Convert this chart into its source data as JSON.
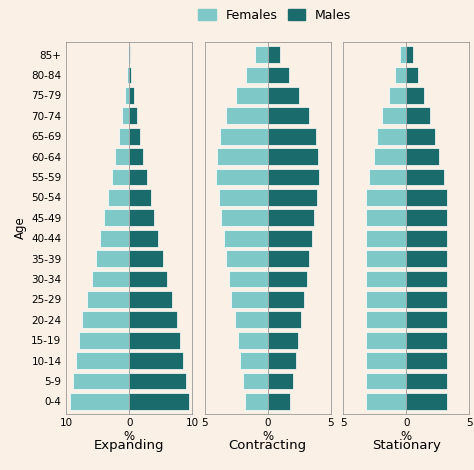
{
  "age_groups": [
    "0-4",
    "5-9",
    "10-14",
    "15-19",
    "20-24",
    "25-29",
    "30-34",
    "35-39",
    "40-44",
    "45-49",
    "50-54",
    "55-59",
    "60-64",
    "65-69",
    "70-74",
    "75-79",
    "80-84",
    "85+"
  ],
  "expanding": {
    "females": [
      9.5,
      9.0,
      8.5,
      8.0,
      7.5,
      6.8,
      6.0,
      5.3,
      4.6,
      4.0,
      3.4,
      2.8,
      2.2,
      1.7,
      1.2,
      0.7,
      0.3,
      0.15
    ],
    "males": [
      9.5,
      9.0,
      8.5,
      8.0,
      7.5,
      6.8,
      6.0,
      5.3,
      4.6,
      4.0,
      3.4,
      2.8,
      2.2,
      1.7,
      1.2,
      0.7,
      0.3,
      0.15
    ]
  },
  "contracting": {
    "females": [
      1.8,
      2.0,
      2.2,
      2.4,
      2.6,
      2.9,
      3.1,
      3.3,
      3.5,
      3.7,
      3.9,
      4.1,
      4.0,
      3.8,
      3.3,
      2.5,
      1.7,
      1.0
    ],
    "males": [
      1.8,
      2.0,
      2.2,
      2.4,
      2.6,
      2.9,
      3.1,
      3.3,
      3.5,
      3.7,
      3.9,
      4.1,
      4.0,
      3.8,
      3.3,
      2.5,
      1.7,
      1.0
    ]
  },
  "stationary": {
    "females": [
      3.2,
      3.2,
      3.2,
      3.2,
      3.2,
      3.2,
      3.2,
      3.2,
      3.2,
      3.2,
      3.2,
      3.0,
      2.6,
      2.3,
      1.9,
      1.4,
      0.9,
      0.5
    ],
    "males": [
      3.2,
      3.2,
      3.2,
      3.2,
      3.2,
      3.2,
      3.2,
      3.2,
      3.2,
      3.2,
      3.2,
      3.0,
      2.6,
      2.3,
      1.9,
      1.4,
      0.9,
      0.5
    ]
  },
  "color_female": "#7EC8C8",
  "color_male": "#1A6B6B",
  "background_color": "#FAF0E6",
  "bar_edge_color": "#ffffff",
  "label_fontsize": 8.5,
  "tick_fontsize": 7.5,
  "subtitle_fontsize": 9.5,
  "xlim_expanding": 10,
  "xlim_contracting": 5,
  "xlim_stationary": 5,
  "subtitles": [
    "Expanding",
    "Contracting",
    "Stationary"
  ],
  "ylabel": "Age",
  "xlabel": "%",
  "legend_female": "Females",
  "legend_male": "Males",
  "legend_fontsize": 9
}
